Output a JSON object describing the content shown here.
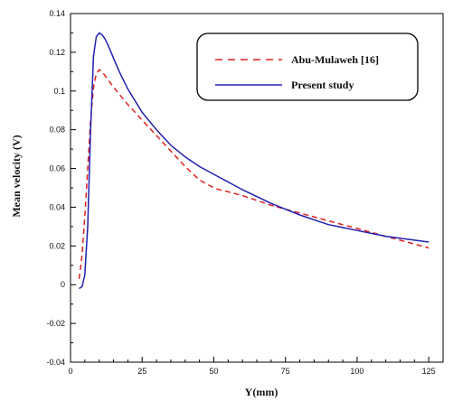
{
  "chart_data": {
    "type": "line",
    "xlabel": "Y(mm)",
    "ylabel": "Mean velocity (V)",
    "xlim": [
      0,
      130
    ],
    "ylim": [
      -0.04,
      0.14
    ],
    "x_ticks": [
      "0",
      "25",
      "50",
      "75",
      "100",
      "125"
    ],
    "y_ticks": [
      "-0.04",
      "-0.02",
      "0",
      "0.02",
      "0.04",
      "0.06",
      "0.08",
      "0.1",
      "0.12",
      "0.14"
    ],
    "legend_position": "top-right",
    "series": [
      {
        "name": "Abu-Mulaweh [16]",
        "color": "#e02020",
        "style": "dashed",
        "x": [
          3,
          4,
          5,
          6,
          7,
          8,
          9,
          10,
          11,
          12,
          15,
          20,
          25,
          30,
          35,
          40,
          45,
          50,
          52,
          55,
          60,
          70,
          80,
          90,
          100,
          110,
          120,
          125
        ],
        "y": [
          0.003,
          0.015,
          0.035,
          0.06,
          0.085,
          0.102,
          0.109,
          0.111,
          0.11,
          0.108,
          0.102,
          0.093,
          0.085,
          0.077,
          0.069,
          0.061,
          0.054,
          0.05,
          0.049,
          0.048,
          0.046,
          0.041,
          0.037,
          0.033,
          0.029,
          0.025,
          0.021,
          0.019
        ]
      },
      {
        "name": "Present study",
        "color": "#2020b0",
        "style": "solid",
        "x": [
          3,
          4,
          5,
          6,
          7,
          8,
          9,
          10,
          11,
          12,
          13,
          15,
          17,
          20,
          25,
          30,
          35,
          40,
          45,
          50,
          60,
          70,
          80,
          90,
          100,
          110,
          120,
          125
        ],
        "y": [
          -0.002,
          -0.001,
          0.005,
          0.03,
          0.08,
          0.118,
          0.128,
          0.13,
          0.129,
          0.127,
          0.124,
          0.117,
          0.11,
          0.101,
          0.089,
          0.08,
          0.072,
          0.066,
          0.061,
          0.057,
          0.049,
          0.042,
          0.036,
          0.031,
          0.028,
          0.025,
          0.023,
          0.022
        ]
      }
    ]
  }
}
